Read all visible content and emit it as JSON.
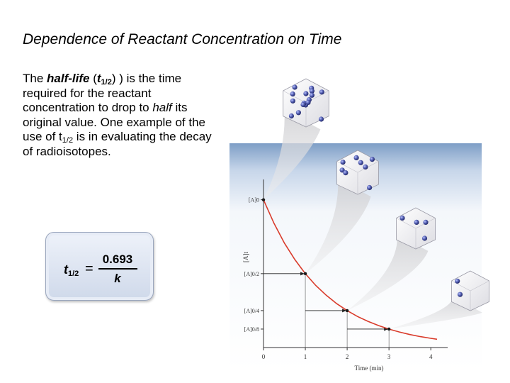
{
  "slide": {
    "title": "Dependence of Reactant Concentration on Time",
    "body": {
      "p1": "The ",
      "term": "half-life",
      "p2": " (",
      "sym": "t",
      "sym_sub": "1/2",
      "p3": ") is the time required for the reactant concentration to drop to ",
      "half": "half",
      "p4": " its original value.  One example of the use of  t",
      "sub2": "1/2",
      "p5": " is in evaluating the decay of radioisotopes."
    },
    "formula": {
      "lhs": "t",
      "lhs_sub": "1/2",
      "equals": "=",
      "numerator": "0.693",
      "denominator": "k"
    }
  },
  "chart_data": {
    "type": "line",
    "xlabel": "Time (min)",
    "ylabel": "[A]t",
    "xticks": [
      "0",
      "1",
      "2",
      "3",
      "4"
    ],
    "yticks": [
      "[A]0",
      "[A]0/2",
      "[A]0/4",
      "[A]0/8"
    ],
    "xlim": [
      0,
      4.2
    ],
    "ylim": [
      0,
      1.08
    ],
    "series": [
      {
        "color": "#d93b2b",
        "x": [
          0,
          0.25,
          0.5,
          0.75,
          1,
          1.25,
          1.5,
          1.75,
          2,
          2.25,
          2.5,
          2.75,
          3,
          3.25,
          3.5,
          3.75,
          4,
          4.15
        ],
        "y": [
          1,
          0.841,
          0.707,
          0.595,
          0.5,
          0.42,
          0.354,
          0.297,
          0.25,
          0.21,
          0.177,
          0.149,
          0.125,
          0.105,
          0.088,
          0.074,
          0.0625,
          0.056
        ]
      }
    ],
    "half_life_points": [
      {
        "x": 0,
        "y": 1
      },
      {
        "x": 1,
        "y": 0.5
      },
      {
        "x": 2,
        "y": 0.25
      },
      {
        "x": 3,
        "y": 0.125
      }
    ],
    "grid": false
  },
  "cubes": [
    {
      "particles": 16
    },
    {
      "particles": 8
    },
    {
      "particles": 4
    },
    {
      "particles": 2
    }
  ],
  "colors": {
    "curve": "#d93b2b",
    "panel_top": "#7e9ec6",
    "particle": "#4a55a8"
  }
}
